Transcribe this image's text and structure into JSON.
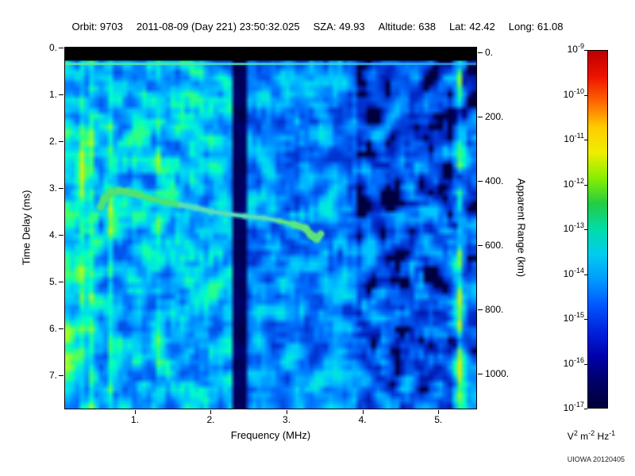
{
  "header": {
    "items": [
      {
        "label": "Orbit:",
        "value": "9703"
      },
      {
        "label": "",
        "value": "2011-08-09 (Day 221) 23:50:32.025"
      },
      {
        "label": "SZA:",
        "value": "49.93"
      },
      {
        "label": "Altitude:",
        "value": "638"
      },
      {
        "label": "Lat:",
        "value": "42.42"
      },
      {
        "label": "Long:",
        "value": "61.08"
      }
    ]
  },
  "footer": {
    "credit": "UIOWA 20120405"
  },
  "chart_data": {
    "type": "heatmap",
    "title": "",
    "xlabel": "Frequency (MHz)",
    "ylabel_left": "Time Delay (ms)",
    "ylabel_right": "Apparent Range (km)",
    "x_range_mhz": [
      0.08,
      5.5
    ],
    "y_range_ms": [
      0,
      7.71
    ],
    "y_right_range_km": [
      -15,
      1109
    ],
    "x_ticks": [
      {
        "label": "1.",
        "value": 1
      },
      {
        "label": "2.",
        "value": 2
      },
      {
        "label": "3.",
        "value": 3
      },
      {
        "label": "4.",
        "value": 4
      },
      {
        "label": "5.",
        "value": 5
      }
    ],
    "y_left_ticks": [
      {
        "label": "0.",
        "value": 0
      },
      {
        "label": "1.",
        "value": 1
      },
      {
        "label": "2.",
        "value": 2
      },
      {
        "label": "3.",
        "value": 3
      },
      {
        "label": "4.",
        "value": 4
      },
      {
        "label": "5.",
        "value": 5
      },
      {
        "label": "6.",
        "value": 6
      },
      {
        "label": "7.",
        "value": 7
      }
    ],
    "y_right_ticks": [
      {
        "label": "0.",
        "value": 0
      },
      {
        "label": "200.",
        "value": 200
      },
      {
        "label": "400.",
        "value": 400
      },
      {
        "label": "600.",
        "value": 600
      },
      {
        "label": "800.",
        "value": 800
      },
      {
        "label": "1000.",
        "value": 1000
      }
    ],
    "colorbar": {
      "scale_base": "10",
      "exponents": [
        "-9",
        "-10",
        "-11",
        "-12",
        "-13",
        "-14",
        "-15",
        "-16",
        "-17"
      ],
      "units_segments": [
        {
          "t": "V"
        },
        {
          "t": "2",
          "sup": true
        },
        {
          "t": " m"
        },
        {
          "t": "-2",
          "sup": true
        },
        {
          "t": " Hz"
        },
        {
          "t": "-1",
          "sup": true
        }
      ],
      "gradient": [
        "#bb0000",
        "#ee1100",
        "#ff6600",
        "#ffcc00",
        "#eeee00",
        "#88ee00",
        "#22cc44",
        "#00ddaa",
        "#00ccee",
        "#0099ff",
        "#0055ff",
        "#0022dd",
        "#0000aa",
        "#000066",
        "#000038"
      ]
    },
    "echo_trace": {
      "description": "ionospheric echo trace, green-cyan",
      "points_mhz_ms": [
        [
          0.55,
          3.4
        ],
        [
          0.6,
          3.22
        ],
        [
          0.68,
          3.1
        ],
        [
          0.78,
          3.06
        ],
        [
          0.9,
          3.08
        ],
        [
          1.05,
          3.14
        ],
        [
          1.2,
          3.22
        ],
        [
          1.4,
          3.3
        ],
        [
          1.6,
          3.36
        ],
        [
          1.8,
          3.42
        ],
        [
          2.0,
          3.5
        ],
        [
          2.2,
          3.55
        ],
        [
          2.45,
          3.6
        ],
        [
          2.7,
          3.64
        ],
        [
          2.9,
          3.7
        ],
        [
          3.1,
          3.78
        ],
        [
          3.25,
          3.86
        ],
        [
          3.32,
          4.0
        ],
        [
          3.4,
          4.08
        ],
        [
          3.45,
          3.98
        ]
      ]
    },
    "features": {
      "top_black_band_ms": 0.28,
      "surface_echo_line_ms": 0.35,
      "vertical_lines": [
        {
          "f": 0.13,
          "w": 0.018,
          "s": 0.15
        },
        {
          "f": 0.2,
          "w": 0.018,
          "s": 0.14
        },
        {
          "f": 0.3,
          "w": 0.018,
          "s": 0.14
        },
        {
          "f": 0.42,
          "w": 0.02,
          "s": 0.12
        },
        {
          "f": 0.68,
          "w": 0.025,
          "s": 0.12
        },
        {
          "f": 1.33,
          "w": 0.03,
          "s": 0.18
        },
        {
          "f": 5.28,
          "w": 0.06,
          "s": 0.38
        }
      ],
      "dark_band_mhz": [
        2.28,
        2.45
      ],
      "noise_regions": [
        {
          "f_range": [
            0.08,
            2.28
          ],
          "base": 0.3,
          "amp": 0.34
        },
        {
          "f_range": [
            2.45,
            3.9
          ],
          "base": 0.24,
          "amp": 0.3
        },
        {
          "f_range": [
            3.9,
            5.5
          ],
          "base": 0.1,
          "amp": 0.38,
          "black_patches": true
        }
      ]
    }
  }
}
